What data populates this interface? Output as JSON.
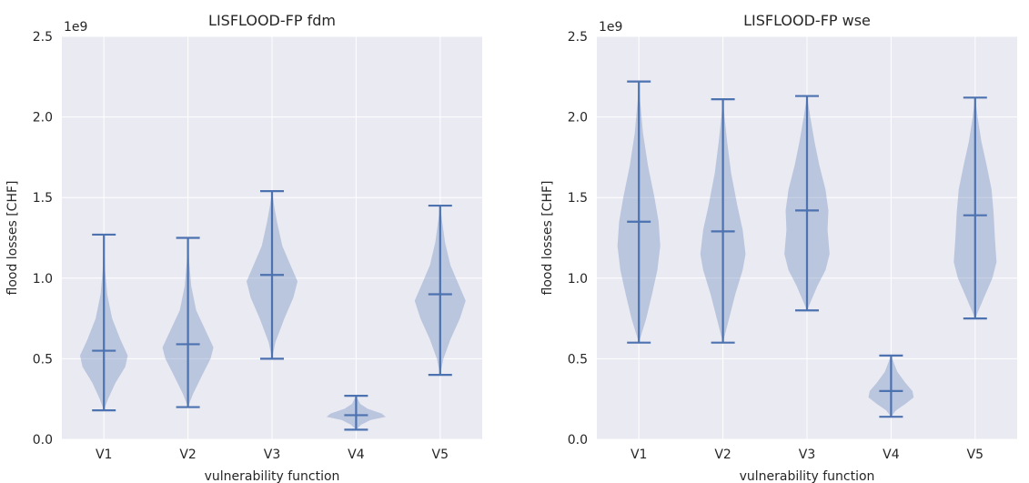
{
  "chart_data": [
    {
      "type": "violin",
      "title": "LISFLOOD-FP fdm",
      "xlabel": "vulnerability function",
      "ylabel": "flood losses [CHF]",
      "offset_label": "1e9",
      "ylim": [
        0,
        2.5
      ],
      "yticks": [
        "0.0",
        "0.5",
        "1.0",
        "1.5",
        "2.0",
        "2.5"
      ],
      "categories": [
        "V1",
        "V2",
        "V3",
        "V4",
        "V5"
      ],
      "grid": true,
      "series": [
        {
          "min": 0.18,
          "max": 1.27,
          "median": 0.55,
          "profile": [
            [
              0.18,
              0.0
            ],
            [
              0.25,
              0.1
            ],
            [
              0.35,
              0.28
            ],
            [
              0.45,
              0.52
            ],
            [
              0.52,
              0.58
            ],
            [
              0.62,
              0.4
            ],
            [
              0.75,
              0.2
            ],
            [
              0.9,
              0.08
            ],
            [
              1.05,
              0.03
            ],
            [
              1.27,
              0.0
            ]
          ]
        },
        {
          "min": 0.2,
          "max": 1.25,
          "median": 0.59,
          "profile": [
            [
              0.2,
              0.0
            ],
            [
              0.28,
              0.12
            ],
            [
              0.4,
              0.35
            ],
            [
              0.5,
              0.55
            ],
            [
              0.57,
              0.62
            ],
            [
              0.68,
              0.42
            ],
            [
              0.8,
              0.2
            ],
            [
              0.95,
              0.08
            ],
            [
              1.1,
              0.03
            ],
            [
              1.25,
              0.0
            ]
          ]
        },
        {
          "min": 0.5,
          "max": 1.54,
          "median": 1.02,
          "profile": [
            [
              0.5,
              0.0
            ],
            [
              0.6,
              0.08
            ],
            [
              0.75,
              0.3
            ],
            [
              0.88,
              0.52
            ],
            [
              0.98,
              0.62
            ],
            [
              1.08,
              0.45
            ],
            [
              1.2,
              0.25
            ],
            [
              1.35,
              0.12
            ],
            [
              1.45,
              0.05
            ],
            [
              1.54,
              0.0
            ]
          ]
        },
        {
          "min": 0.06,
          "max": 0.27,
          "median": 0.15,
          "profile": [
            [
              0.06,
              0.0
            ],
            [
              0.09,
              0.12
            ],
            [
              0.12,
              0.35
            ],
            [
              0.14,
              0.72
            ],
            [
              0.16,
              0.62
            ],
            [
              0.19,
              0.28
            ],
            [
              0.22,
              0.1
            ],
            [
              0.27,
              0.0
            ]
          ]
        },
        {
          "min": 0.4,
          "max": 1.45,
          "median": 0.9,
          "profile": [
            [
              0.4,
              0.0
            ],
            [
              0.5,
              0.08
            ],
            [
              0.62,
              0.25
            ],
            [
              0.75,
              0.48
            ],
            [
              0.86,
              0.62
            ],
            [
              0.96,
              0.45
            ],
            [
              1.08,
              0.25
            ],
            [
              1.22,
              0.12
            ],
            [
              1.35,
              0.05
            ],
            [
              1.45,
              0.0
            ]
          ]
        }
      ]
    },
    {
      "type": "violin",
      "title": "LISFLOOD-FP wse",
      "xlabel": "vulnerability function",
      "ylabel": "flood losses [CHF]",
      "offset_label": "1e9",
      "ylim": [
        0,
        2.5
      ],
      "yticks": [
        "0.0",
        "0.5",
        "1.0",
        "1.5",
        "2.0",
        "2.5"
      ],
      "categories": [
        "V1",
        "V2",
        "V3",
        "V4",
        "V5"
      ],
      "grid": true,
      "series": [
        {
          "min": 0.6,
          "max": 2.22,
          "median": 1.35,
          "profile": [
            [
              0.6,
              0.0
            ],
            [
              0.75,
              0.18
            ],
            [
              0.9,
              0.32
            ],
            [
              1.05,
              0.45
            ],
            [
              1.2,
              0.52
            ],
            [
              1.35,
              0.48
            ],
            [
              1.5,
              0.38
            ],
            [
              1.7,
              0.22
            ],
            [
              1.9,
              0.1
            ],
            [
              2.1,
              0.03
            ],
            [
              2.22,
              0.0
            ]
          ]
        },
        {
          "min": 0.6,
          "max": 2.11,
          "median": 1.29,
          "profile": [
            [
              0.6,
              0.0
            ],
            [
              0.75,
              0.15
            ],
            [
              0.9,
              0.3
            ],
            [
              1.05,
              0.48
            ],
            [
              1.15,
              0.55
            ],
            [
              1.3,
              0.48
            ],
            [
              1.45,
              0.35
            ],
            [
              1.65,
              0.2
            ],
            [
              1.85,
              0.1
            ],
            [
              2.0,
              0.04
            ],
            [
              2.11,
              0.0
            ]
          ]
        },
        {
          "min": 0.8,
          "max": 2.13,
          "median": 1.42,
          "profile": [
            [
              0.8,
              0.0
            ],
            [
              0.95,
              0.25
            ],
            [
              1.05,
              0.45
            ],
            [
              1.15,
              0.55
            ],
            [
              1.3,
              0.5
            ],
            [
              1.42,
              0.52
            ],
            [
              1.55,
              0.45
            ],
            [
              1.7,
              0.3
            ],
            [
              1.85,
              0.18
            ],
            [
              2.0,
              0.08
            ],
            [
              2.13,
              0.0
            ]
          ]
        },
        {
          "min": 0.14,
          "max": 0.52,
          "median": 0.3,
          "profile": [
            [
              0.14,
              0.0
            ],
            [
              0.18,
              0.12
            ],
            [
              0.22,
              0.35
            ],
            [
              0.26,
              0.55
            ],
            [
              0.3,
              0.52
            ],
            [
              0.35,
              0.35
            ],
            [
              0.42,
              0.15
            ],
            [
              0.52,
              0.0
            ]
          ]
        },
        {
          "min": 0.75,
          "max": 2.12,
          "median": 1.39,
          "profile": [
            [
              0.75,
              0.0
            ],
            [
              0.9,
              0.25
            ],
            [
              1.0,
              0.42
            ],
            [
              1.1,
              0.52
            ],
            [
              1.25,
              0.48
            ],
            [
              1.4,
              0.45
            ],
            [
              1.55,
              0.4
            ],
            [
              1.7,
              0.28
            ],
            [
              1.85,
              0.15
            ],
            [
              2.0,
              0.06
            ],
            [
              2.12,
              0.0
            ]
          ]
        }
      ]
    }
  ],
  "colors": {
    "panel_bg": "#eaeaf2",
    "grid": "#ffffff",
    "violin_fill": "#4c72b0",
    "line": "#4c72b0",
    "text": "#262626"
  }
}
